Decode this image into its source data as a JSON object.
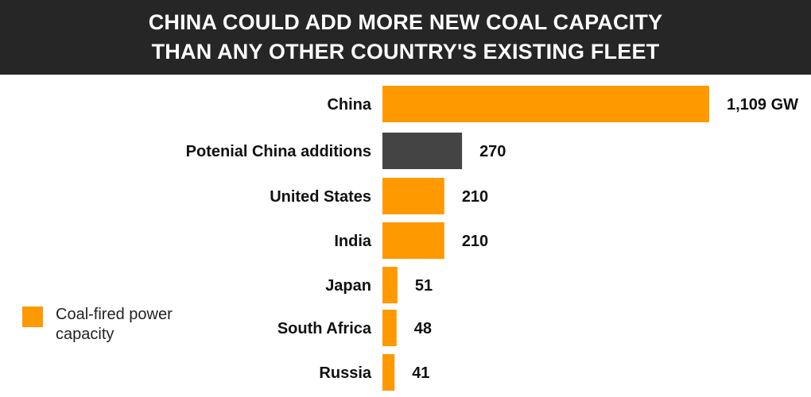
{
  "title": {
    "line1": "CHINA COULD ADD MORE NEW COAL CAPACITY",
    "line2": "THAN ANY OTHER COUNTRY'S EXISTING FLEET"
  },
  "legend": {
    "label": "Coal-fired power capacity",
    "color": "#FF9900"
  },
  "colors": {
    "coal": "#FF9900",
    "additions": "#444444",
    "title_bg": "#262626"
  },
  "chart_data": {
    "type": "bar",
    "orientation": "horizontal",
    "title": "CHINA COULD ADD MORE NEW COAL CAPACITY THAN ANY OTHER COUNTRY'S EXISTING FLEET",
    "categories": [
      "China",
      "Potenial China additions",
      "United States",
      "India",
      "Japan",
      "South Africa",
      "Russia"
    ],
    "values": [
      1109,
      270,
      210,
      210,
      51,
      48,
      41
    ],
    "value_labels": [
      "1,109 GW",
      "270",
      "210",
      "210",
      "51",
      "48",
      "41"
    ],
    "bar_colors": [
      "#FF9900",
      "#444444",
      "#FF9900",
      "#FF9900",
      "#FF9900",
      "#FF9900",
      "#FF9900"
    ],
    "unit": "GW",
    "legend": [
      "Coal-fired power capacity"
    ],
    "legend_position": "bottom-left",
    "grid": false
  }
}
